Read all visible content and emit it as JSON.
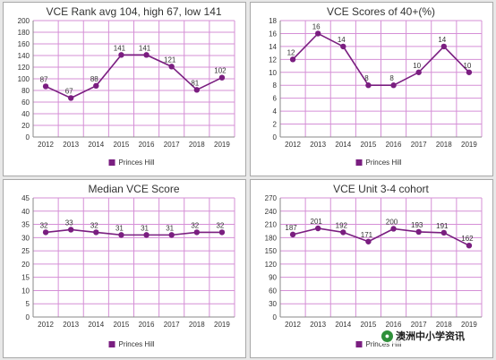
{
  "theme": {
    "line_color": "#7a1e80",
    "grid_color": "#d58fd6",
    "text_color": "#333333"
  },
  "watermark": {
    "text": "澳洲中小学资讯",
    "icon": "wechat-icon"
  },
  "chart_data": [
    {
      "type": "line",
      "title": "VCE Rank avg 104, high 67, low 141",
      "categories": [
        "2012",
        "2013",
        "2014",
        "2015",
        "2016",
        "2017",
        "2018",
        "2019"
      ],
      "series": [
        {
          "name": "Princes Hill",
          "values": [
            87,
            67,
            88,
            141,
            141,
            121,
            81,
            102
          ]
        }
      ],
      "ylim": [
        0,
        200
      ],
      "yticks": [
        0,
        20,
        40,
        60,
        80,
        100,
        120,
        140,
        160,
        180,
        200
      ],
      "grid": true,
      "legend": "bottom"
    },
    {
      "type": "line",
      "title": "VCE Scores of 40+(%)",
      "categories": [
        "2012",
        "2013",
        "2014",
        "2015",
        "2016",
        "2017",
        "2018",
        "2019"
      ],
      "series": [
        {
          "name": "Princes Hill",
          "values": [
            12,
            16,
            14,
            8,
            8,
            10,
            14,
            10
          ]
        }
      ],
      "ylim": [
        0,
        18
      ],
      "yticks": [
        0,
        2,
        4,
        6,
        8,
        10,
        12,
        14,
        16,
        18
      ],
      "grid": true,
      "legend": "bottom"
    },
    {
      "type": "line",
      "title": "Median VCE Score",
      "categories": [
        "2012",
        "2013",
        "2014",
        "2015",
        "2016",
        "2017",
        "2018",
        "2019"
      ],
      "series": [
        {
          "name": "Princes Hill",
          "values": [
            32,
            33,
            32,
            31,
            31,
            31,
            32,
            32
          ]
        }
      ],
      "ylim": [
        0,
        45
      ],
      "yticks": [
        0,
        5,
        10,
        15,
        20,
        25,
        30,
        35,
        40,
        45
      ],
      "grid": true,
      "legend": "bottom"
    },
    {
      "type": "line",
      "title": "VCE Unit 3-4 cohort",
      "categories": [
        "2012",
        "2013",
        "2014",
        "2015",
        "2016",
        "2017",
        "2018",
        "2019"
      ],
      "series": [
        {
          "name": "Princes Hill",
          "values": [
            187,
            201,
            192,
            171,
            200,
            193,
            191,
            162
          ]
        }
      ],
      "ylim": [
        0,
        270
      ],
      "yticks": [
        0,
        30,
        60,
        90,
        120,
        150,
        180,
        210,
        240,
        270
      ],
      "grid": true,
      "legend": "bottom"
    }
  ]
}
